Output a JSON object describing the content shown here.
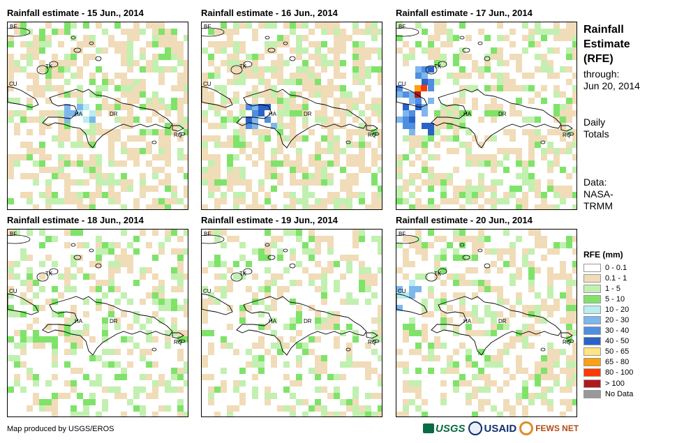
{
  "panels": [
    {
      "title": "Rainfall estimate - 15 Jun., 2014",
      "seed": 15,
      "intensity": 0.55,
      "hotspot": "haiti"
    },
    {
      "title": "Rainfall estimate - 16 Jun., 2014",
      "seed": 16,
      "intensity": 0.6,
      "hotspot": "haiti-strong"
    },
    {
      "title": "Rainfall estimate - 17 Jun., 2014",
      "seed": 17,
      "intensity": 0.5,
      "hotspot": "cuba"
    },
    {
      "title": "Rainfall estimate - 18 Jun., 2014",
      "seed": 18,
      "intensity": 0.35,
      "hotspot": "none"
    },
    {
      "title": "Rainfall estimate - 19 Jun., 2014",
      "seed": 19,
      "intensity": 0.4,
      "hotspot": "none"
    },
    {
      "title": "Rainfall estimate - 20 Jun., 2014",
      "seed": 20,
      "intensity": 0.45,
      "hotspot": "cuba-east"
    }
  ],
  "map_labels": {
    "bf": "BF",
    "cu": "CU",
    "tk": "TK",
    "ha": "HA",
    "dr": "DR",
    "rq": "RQ"
  },
  "side": {
    "title_line1": "Rainfall",
    "title_line2": "Estimate",
    "title_line3": "(RFE)",
    "through_label": "through:",
    "through_date": "Jun 20, 2014",
    "totals_line1": "Daily",
    "totals_line2": "Totals",
    "data_line1": "Data:",
    "data_line2": "NASA-",
    "data_line3": "TRMM"
  },
  "legend": {
    "title": "RFE (mm)",
    "items": [
      {
        "label": "0 - 0.1",
        "color": "#ffffff"
      },
      {
        "label": "0.1 - 1",
        "color": "#f0dcb8"
      },
      {
        "label": "1 - 5",
        "color": "#c2f0b0"
      },
      {
        "label": "5 - 10",
        "color": "#7fe36a"
      },
      {
        "label": "10 - 20",
        "color": "#b8eef0"
      },
      {
        "label": "20 - 30",
        "color": "#7fb6ec"
      },
      {
        "label": "30 - 40",
        "color": "#4f8ee0"
      },
      {
        "label": "40 - 50",
        "color": "#2a62c8"
      },
      {
        "label": "50 - 65",
        "color": "#ffe480"
      },
      {
        "label": "65 - 80",
        "color": "#ffa012"
      },
      {
        "label": "80 - 100",
        "color": "#ff3a00"
      },
      {
        "label": "> 100",
        "color": "#b01a1a"
      },
      {
        "label": "No Data",
        "color": "#999999"
      }
    ]
  },
  "footer": {
    "credit": "Map produced by USGS/EROS"
  },
  "logos": {
    "usgs": "USGS",
    "usaid": "USAID",
    "fews": "FEWS NET"
  }
}
